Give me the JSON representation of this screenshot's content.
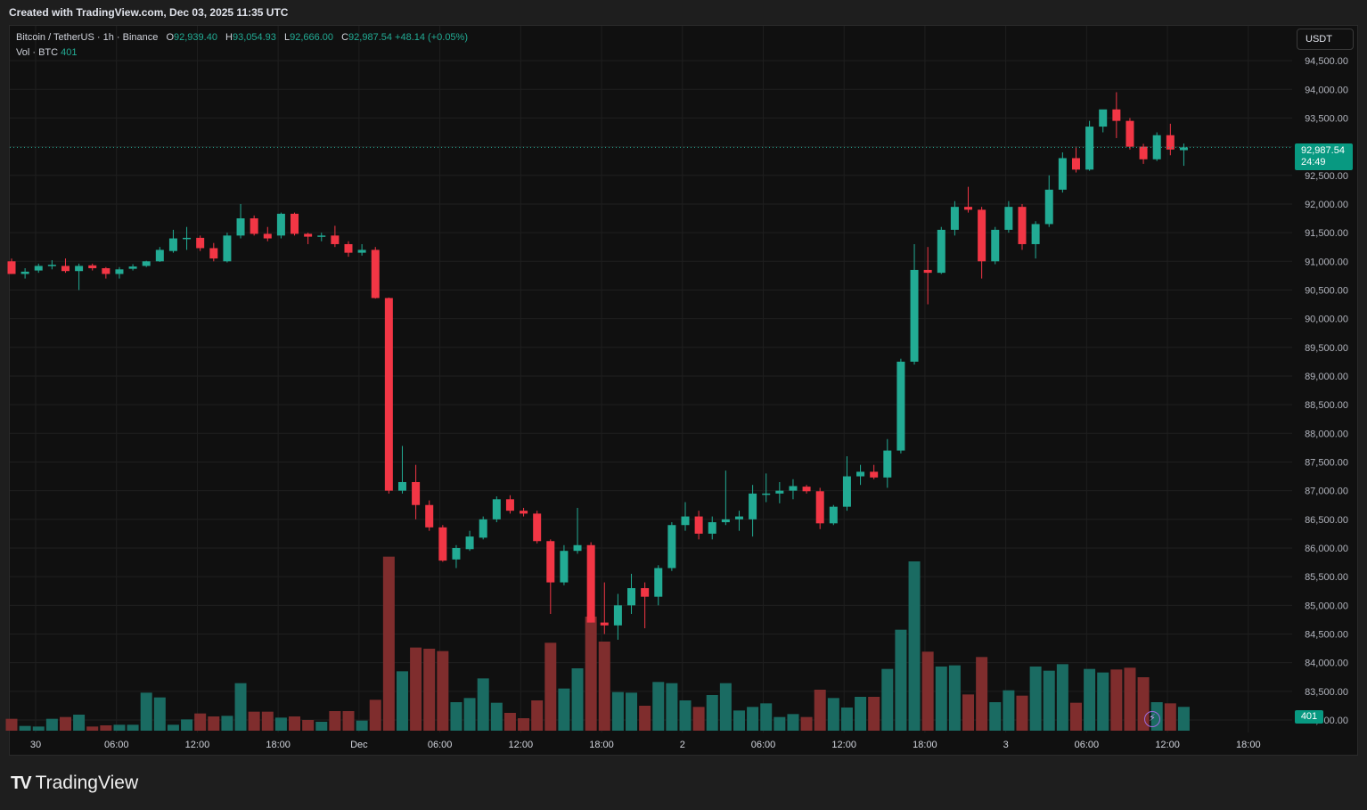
{
  "header": {
    "created_text": "Created with TradingView.com, Dec 03, 2025 11:35 UTC"
  },
  "legend": {
    "symbol": "Bitcoin / TetherUS · 1h · Binance",
    "open_label": "O",
    "open": "92,939.40",
    "high_label": "H",
    "high": "93,054.93",
    "low_label": "L",
    "low": "92,666.00",
    "close_label": "C",
    "close": "92,987.54",
    "change": "+48.14 (+0.05%)",
    "vol_label": "Vol · BTC",
    "vol_value": "401"
  },
  "unit_button": "USDT",
  "current_price": {
    "price": "92,987.54",
    "countdown": "24:49"
  },
  "volume_label": "401",
  "brand": {
    "logo": "TV",
    "name": "TradingView"
  },
  "colors": {
    "up": "#22ab94",
    "down": "#f23645",
    "up_vol": "#1a6b62",
    "down_vol": "#7f2d2d",
    "grid": "#1f1f1f",
    "text": "#b2b5be"
  },
  "chart_data": {
    "type": "candlestick",
    "title": "Bitcoin / TetherUS · 1h · Binance",
    "y_axis": {
      "min": 83000,
      "max": 94500,
      "ticks": [
        "94,500.00",
        "94,000.00",
        "93,500.00",
        "93,000.00",
        "92,500.00",
        "92,000.00",
        "91,500.00",
        "91,000.00",
        "90,500.00",
        "90,000.00",
        "89,500.00",
        "89,000.00",
        "88,500.00",
        "88,000.00",
        "87,500.00",
        "87,000.00",
        "86,500.00",
        "86,000.00",
        "85,500.00",
        "85,000.00",
        "84,500.00",
        "84,000.00",
        "83,500.00",
        "83,000.00"
      ]
    },
    "x_axis": {
      "ticks": [
        {
          "label": "30",
          "hour": 0
        },
        {
          "label": "06:00",
          "hour": 6
        },
        {
          "label": "12:00",
          "hour": 12
        },
        {
          "label": "18:00",
          "hour": 18
        },
        {
          "label": "Dec",
          "hour": 24
        },
        {
          "label": "06:00",
          "hour": 30
        },
        {
          "label": "12:00",
          "hour": 36
        },
        {
          "label": "18:00",
          "hour": 42
        },
        {
          "label": "2",
          "hour": 48
        },
        {
          "label": "06:00",
          "hour": 54
        },
        {
          "label": "12:00",
          "hour": 60
        },
        {
          "label": "18:00",
          "hour": 66
        },
        {
          "label": "3",
          "hour": 72
        },
        {
          "label": "06:00",
          "hour": 78
        },
        {
          "label": "12:00",
          "hour": 84
        },
        {
          "label": "18:00",
          "hour": 90
        }
      ]
    },
    "candles": [
      {
        "o": 91000,
        "h": 91050,
        "l": 90780,
        "c": 90780,
        "v": 200
      },
      {
        "o": 90780,
        "h": 90880,
        "l": 90700,
        "c": 90820,
        "v": 80
      },
      {
        "o": 90840,
        "h": 90960,
        "l": 90800,
        "c": 90920,
        "v": 70
      },
      {
        "o": 90920,
        "h": 91020,
        "l": 90860,
        "c": 90940,
        "v": 200
      },
      {
        "o": 90920,
        "h": 91050,
        "l": 90800,
        "c": 90830,
        "v": 230
      },
      {
        "o": 90830,
        "h": 90960,
        "l": 90500,
        "c": 90920,
        "v": 270
      },
      {
        "o": 90930,
        "h": 90960,
        "l": 90840,
        "c": 90880,
        "v": 70
      },
      {
        "o": 90880,
        "h": 90900,
        "l": 90700,
        "c": 90780,
        "v": 90
      },
      {
        "o": 90780,
        "h": 90900,
        "l": 90700,
        "c": 90860,
        "v": 100
      },
      {
        "o": 90870,
        "h": 90950,
        "l": 90840,
        "c": 90910,
        "v": 100
      },
      {
        "o": 90920,
        "h": 91010,
        "l": 90900,
        "c": 91000,
        "v": 640
      },
      {
        "o": 91000,
        "h": 91250,
        "l": 90990,
        "c": 91200,
        "v": 560
      },
      {
        "o": 91180,
        "h": 91550,
        "l": 91150,
        "c": 91400,
        "v": 100
      },
      {
        "o": 91400,
        "h": 91600,
        "l": 91200,
        "c": 91410,
        "v": 190
      },
      {
        "o": 91410,
        "h": 91450,
        "l": 91180,
        "c": 91230,
        "v": 290
      },
      {
        "o": 91230,
        "h": 91320,
        "l": 91000,
        "c": 91050,
        "v": 240
      },
      {
        "o": 91000,
        "h": 91500,
        "l": 90980,
        "c": 91450,
        "v": 250
      },
      {
        "o": 91450,
        "h": 92000,
        "l": 91400,
        "c": 91750,
        "v": 800
      },
      {
        "o": 91750,
        "h": 91800,
        "l": 91450,
        "c": 91480,
        "v": 320
      },
      {
        "o": 91480,
        "h": 91600,
        "l": 91350,
        "c": 91400,
        "v": 320
      },
      {
        "o": 91450,
        "h": 91850,
        "l": 91400,
        "c": 91830,
        "v": 220
      },
      {
        "o": 91830,
        "h": 91850,
        "l": 91450,
        "c": 91480,
        "v": 240
      },
      {
        "o": 91480,
        "h": 91500,
        "l": 91300,
        "c": 91430,
        "v": 180
      },
      {
        "o": 91430,
        "h": 91500,
        "l": 91350,
        "c": 91450,
        "v": 150
      },
      {
        "o": 91450,
        "h": 91620,
        "l": 91250,
        "c": 91300,
        "v": 330
      },
      {
        "o": 91300,
        "h": 91350,
        "l": 91080,
        "c": 91150,
        "v": 330
      },
      {
        "o": 91150,
        "h": 91300,
        "l": 91100,
        "c": 91200,
        "v": 170
      },
      {
        "o": 91200,
        "h": 91250,
        "l": 90350,
        "c": 90360,
        "v": 520
      },
      {
        "o": 90360,
        "h": 90370,
        "l": 86950,
        "c": 87000,
        "v": 2930
      },
      {
        "o": 87000,
        "h": 87780,
        "l": 86950,
        "c": 87150,
        "v": 1000
      },
      {
        "o": 87150,
        "h": 87450,
        "l": 86500,
        "c": 86750,
        "v": 1400
      },
      {
        "o": 86750,
        "h": 86830,
        "l": 86300,
        "c": 86360,
        "v": 1380
      },
      {
        "o": 86360,
        "h": 86400,
        "l": 85760,
        "c": 85780,
        "v": 1340
      },
      {
        "o": 85800,
        "h": 86050,
        "l": 85650,
        "c": 86000,
        "v": 480
      },
      {
        "o": 85980,
        "h": 86300,
        "l": 85950,
        "c": 86200,
        "v": 550
      },
      {
        "o": 86180,
        "h": 86550,
        "l": 86150,
        "c": 86500,
        "v": 880
      },
      {
        "o": 86500,
        "h": 86900,
        "l": 86450,
        "c": 86850,
        "v": 470
      },
      {
        "o": 86850,
        "h": 86920,
        "l": 86600,
        "c": 86650,
        "v": 300
      },
      {
        "o": 86650,
        "h": 86700,
        "l": 86550,
        "c": 86600,
        "v": 210
      },
      {
        "o": 86600,
        "h": 86650,
        "l": 86080,
        "c": 86120,
        "v": 510
      },
      {
        "o": 86120,
        "h": 86150,
        "l": 84850,
        "c": 85400,
        "v": 1480
      },
      {
        "o": 85400,
        "h": 86050,
        "l": 85350,
        "c": 85950,
        "v": 710
      },
      {
        "o": 85950,
        "h": 86700,
        "l": 85900,
        "c": 86050,
        "v": 1050
      },
      {
        "o": 86050,
        "h": 86100,
        "l": 84700,
        "c": 84700,
        "v": 1920
      },
      {
        "o": 84700,
        "h": 85400,
        "l": 84500,
        "c": 84650,
        "v": 1500
      },
      {
        "o": 84650,
        "h": 85200,
        "l": 84400,
        "c": 85000,
        "v": 650
      },
      {
        "o": 85000,
        "h": 85550,
        "l": 84850,
        "c": 85300,
        "v": 640
      },
      {
        "o": 85300,
        "h": 85400,
        "l": 84600,
        "c": 85150,
        "v": 420
      },
      {
        "o": 85150,
        "h": 85700,
        "l": 85000,
        "c": 85650,
        "v": 820
      },
      {
        "o": 85650,
        "h": 86450,
        "l": 85600,
        "c": 86400,
        "v": 800
      },
      {
        "o": 86400,
        "h": 86800,
        "l": 86300,
        "c": 86550,
        "v": 510
      },
      {
        "o": 86550,
        "h": 86650,
        "l": 86150,
        "c": 86250,
        "v": 400
      },
      {
        "o": 86250,
        "h": 86550,
        "l": 86150,
        "c": 86450,
        "v": 600
      },
      {
        "o": 86450,
        "h": 87350,
        "l": 86400,
        "c": 86500,
        "v": 800
      },
      {
        "o": 86500,
        "h": 86650,
        "l": 86300,
        "c": 86550,
        "v": 340
      },
      {
        "o": 86500,
        "h": 87100,
        "l": 86200,
        "c": 86950,
        "v": 400
      },
      {
        "o": 86950,
        "h": 87300,
        "l": 86800,
        "c": 86950,
        "v": 460
      },
      {
        "o": 86950,
        "h": 87150,
        "l": 86780,
        "c": 87000,
        "v": 230
      },
      {
        "o": 87000,
        "h": 87200,
        "l": 86850,
        "c": 87080,
        "v": 280
      },
      {
        "o": 87070,
        "h": 87100,
        "l": 86950,
        "c": 86990,
        "v": 230
      },
      {
        "o": 86990,
        "h": 87050,
        "l": 86330,
        "c": 86430,
        "v": 690
      },
      {
        "o": 86430,
        "h": 86750,
        "l": 86400,
        "c": 86720,
        "v": 550
      },
      {
        "o": 86720,
        "h": 87600,
        "l": 86650,
        "c": 87250,
        "v": 390
      },
      {
        "o": 87250,
        "h": 87450,
        "l": 87100,
        "c": 87330,
        "v": 570
      },
      {
        "o": 87330,
        "h": 87450,
        "l": 87200,
        "c": 87230,
        "v": 570
      },
      {
        "o": 87230,
        "h": 87900,
        "l": 87050,
        "c": 87700,
        "v": 1040
      },
      {
        "o": 87700,
        "h": 89300,
        "l": 87650,
        "c": 89250,
        "v": 1700
      },
      {
        "o": 89250,
        "h": 91300,
        "l": 89200,
        "c": 90850,
        "v": 2850
      },
      {
        "o": 90850,
        "h": 91250,
        "l": 90250,
        "c": 90800,
        "v": 1330
      },
      {
        "o": 90800,
        "h": 91600,
        "l": 90780,
        "c": 91550,
        "v": 1080
      },
      {
        "o": 91550,
        "h": 92050,
        "l": 91450,
        "c": 91950,
        "v": 1100
      },
      {
        "o": 91950,
        "h": 92300,
        "l": 91850,
        "c": 91900,
        "v": 610
      },
      {
        "o": 91900,
        "h": 91950,
        "l": 90700,
        "c": 91000,
        "v": 1240
      },
      {
        "o": 91000,
        "h": 91600,
        "l": 90950,
        "c": 91550,
        "v": 480
      },
      {
        "o": 91550,
        "h": 92050,
        "l": 91500,
        "c": 91950,
        "v": 680
      },
      {
        "o": 91950,
        "h": 92000,
        "l": 91200,
        "c": 91300,
        "v": 590
      },
      {
        "o": 91300,
        "h": 91700,
        "l": 91050,
        "c": 91650,
        "v": 1080
      },
      {
        "o": 91650,
        "h": 92500,
        "l": 91600,
        "c": 92250,
        "v": 1010
      },
      {
        "o": 92250,
        "h": 92900,
        "l": 92200,
        "c": 92800,
        "v": 1120
      },
      {
        "o": 92800,
        "h": 93000,
        "l": 92550,
        "c": 92600,
        "v": 470
      },
      {
        "o": 92600,
        "h": 93450,
        "l": 92580,
        "c": 93350,
        "v": 1040
      },
      {
        "o": 93350,
        "h": 93550,
        "l": 93250,
        "c": 93650,
        "v": 980
      },
      {
        "o": 93650,
        "h": 93950,
        "l": 93150,
        "c": 93450,
        "v": 1030
      },
      {
        "o": 93450,
        "h": 93500,
        "l": 92950,
        "c": 93000,
        "v": 1060
      },
      {
        "o": 93000,
        "h": 93050,
        "l": 92700,
        "c": 92780,
        "v": 900
      },
      {
        "o": 92780,
        "h": 93250,
        "l": 92750,
        "c": 93200,
        "v": 480
      },
      {
        "o": 93200,
        "h": 93400,
        "l": 92850,
        "c": 92950,
        "v": 460
      },
      {
        "o": 92939.4,
        "h": 93054.93,
        "l": 92666.0,
        "c": 92987.54,
        "v": 401
      }
    ],
    "volume": {
      "max": 3000
    }
  }
}
